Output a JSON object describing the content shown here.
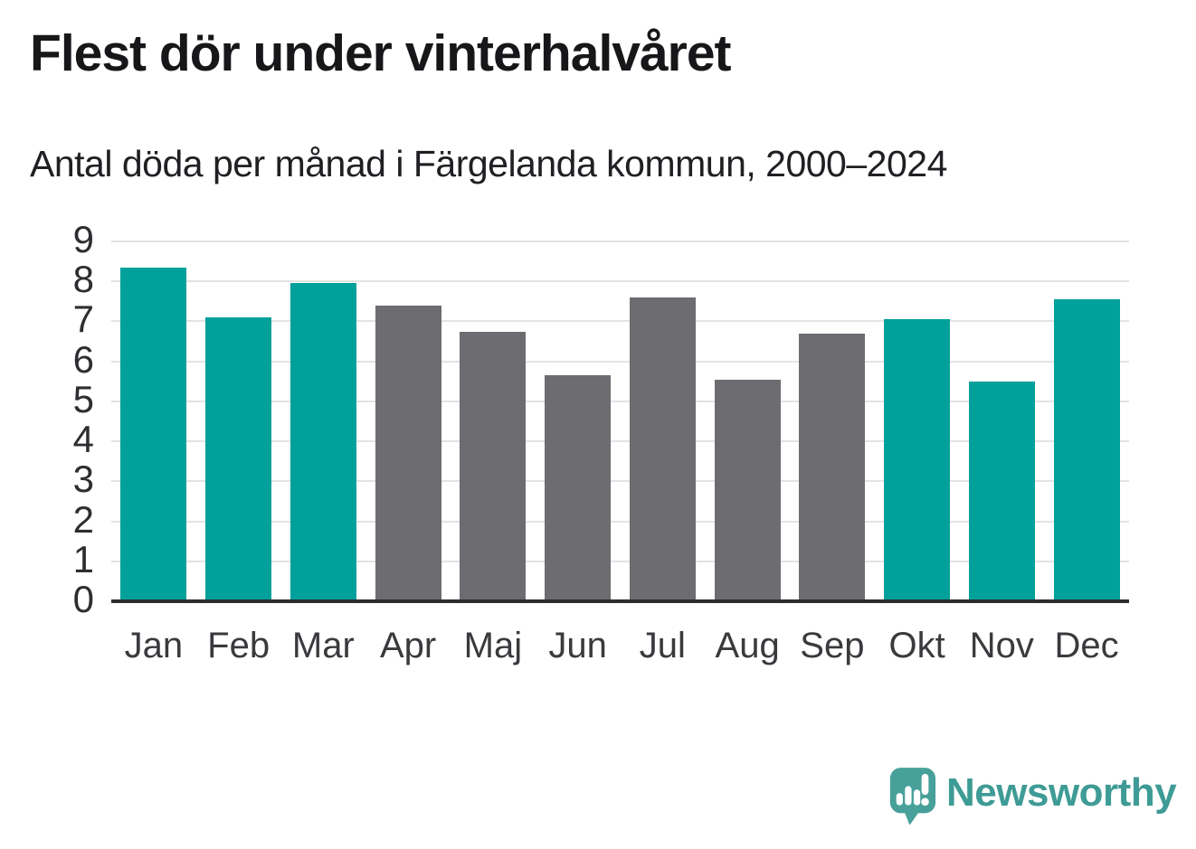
{
  "header": {
    "title": "Flest dör under vinterhalvåret",
    "subtitle": "Antal döda per månad i Färgelanda kommun, 2000–2024"
  },
  "chart_data": {
    "type": "bar",
    "title": "Flest dör under vinterhalvåret",
    "subtitle": "Antal döda per månad i Färgelanda kommun, 2000–2024",
    "categories": [
      "Jan",
      "Feb",
      "Mar",
      "Apr",
      "Maj",
      "Jun",
      "Jul",
      "Aug",
      "Sep",
      "Okt",
      "Nov",
      "Dec"
    ],
    "values": [
      8.35,
      7.1,
      7.95,
      7.4,
      6.75,
      5.65,
      7.6,
      5.55,
      6.7,
      7.05,
      5.5,
      7.55
    ],
    "highlighted": [
      true,
      true,
      true,
      false,
      false,
      false,
      false,
      false,
      false,
      true,
      true,
      true
    ],
    "xlabel": "",
    "ylabel": "",
    "ylim": [
      0,
      9
    ],
    "yticks": [
      0,
      1,
      2,
      3,
      4,
      5,
      6,
      7,
      8,
      9
    ],
    "grid": true,
    "legend": false,
    "colors": {
      "highlight": "#00a19a",
      "default": "#6c6c71",
      "gridline": "#e3e3e5",
      "axis": "#2d2d30",
      "tick_text": "#2e2e32"
    }
  },
  "footer": {
    "brand": "Newsworthy",
    "logo_icon": "newsworthy-speech-bubble-chart-icon",
    "brand_color": "#3e9b95",
    "logo_color": "#47a09a"
  }
}
